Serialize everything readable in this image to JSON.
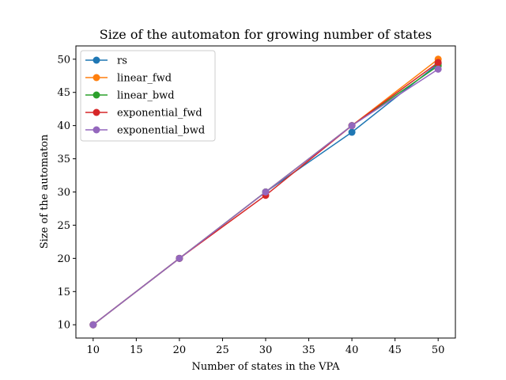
{
  "chart_data": {
    "type": "line",
    "title": "Size of the automaton for growing number of states",
    "xlabel": "Number of states in the VPA",
    "ylabel": "Size of the automaton",
    "xlim": [
      8,
      52
    ],
    "ylim": [
      8,
      52
    ],
    "xticks": [
      10,
      15,
      20,
      25,
      30,
      35,
      40,
      45,
      50
    ],
    "yticks": [
      10,
      15,
      20,
      25,
      30,
      35,
      40,
      45,
      50
    ],
    "grid": false,
    "legend_position": "top-left",
    "x": [
      10,
      20,
      30,
      40,
      50
    ],
    "series": [
      {
        "name": "rs",
        "color": "#1f77b4",
        "values": [
          10,
          20,
          30,
          39,
          49.3
        ]
      },
      {
        "name": "linear_fwd",
        "color": "#ff7f0e",
        "values": [
          10,
          20,
          30,
          40,
          50
        ]
      },
      {
        "name": "linear_bwd",
        "color": "#2ca02c",
        "values": [
          10,
          20,
          30,
          40,
          49
        ]
      },
      {
        "name": "exponential_fwd",
        "color": "#d62728",
        "values": [
          10,
          20,
          29.5,
          40,
          49.5
        ]
      },
      {
        "name": "exponential_bwd",
        "color": "#9467bd",
        "values": [
          10,
          20,
          30,
          40,
          48.5
        ]
      }
    ]
  }
}
